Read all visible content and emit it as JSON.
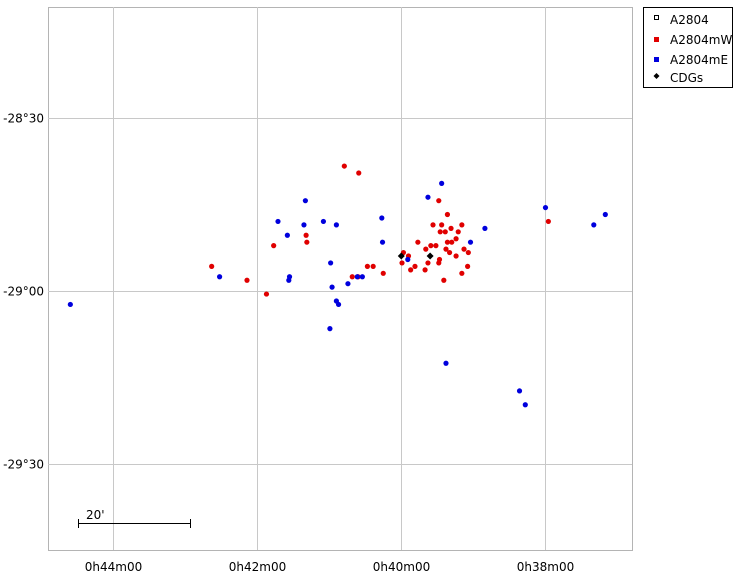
{
  "chart_data": {
    "type": "scatter",
    "x_axis": {
      "unit": "RA",
      "range_min": [
        44.9,
        36.8
      ],
      "ticks": [
        {
          "label": "0h44m00",
          "value_min": 44
        },
        {
          "label": "0h42m00",
          "value_min": 42
        },
        {
          "label": "0h40m00",
          "value_min": 40
        },
        {
          "label": "0h38m00",
          "value_min": 38
        }
      ]
    },
    "y_axis": {
      "unit": "Dec",
      "range_deg": [
        -29.75,
        -28.18
      ],
      "ticks": [
        {
          "label": "-28°30",
          "value_deg": -28.5
        },
        {
          "label": "-29°00",
          "value_deg": -29.0
        },
        {
          "label": "-29°30",
          "value_deg": -29.5
        }
      ]
    },
    "grid": true,
    "legend_position": "top-right",
    "legend": [
      {
        "label": "A2804",
        "color": "#000000",
        "marker": "open-square"
      },
      {
        "label": "A2804mW",
        "color": "#e00000",
        "marker": "square"
      },
      {
        "label": "A2804mE",
        "color": "#0000dd",
        "marker": "square"
      },
      {
        "label": "CDGs",
        "color": "#000000",
        "marker": "diamond"
      }
    ],
    "scale_bar": {
      "label": "20'",
      "length_arcmin": 20
    },
    "series": [
      {
        "name": "A2804mW",
        "color": "#e00000",
        "points": [
          [
            40.79,
            -28.64
          ],
          [
            40.59,
            -28.66
          ],
          [
            37.96,
            -28.8
          ],
          [
            39.48,
            -28.74
          ],
          [
            39.36,
            -28.78
          ],
          [
            39.56,
            -28.81
          ],
          [
            39.44,
            -28.81
          ],
          [
            39.31,
            -28.82
          ],
          [
            39.16,
            -28.81
          ],
          [
            39.21,
            -28.83
          ],
          [
            39.39,
            -28.83
          ],
          [
            39.46,
            -28.83
          ],
          [
            39.24,
            -28.85
          ],
          [
            39.3,
            -28.86
          ],
          [
            39.36,
            -28.86
          ],
          [
            39.52,
            -28.87
          ],
          [
            39.59,
            -28.87
          ],
          [
            39.66,
            -28.88
          ],
          [
            39.77,
            -28.86
          ],
          [
            39.38,
            -28.88
          ],
          [
            39.33,
            -28.89
          ],
          [
            39.97,
            -28.89
          ],
          [
            39.9,
            -28.9
          ],
          [
            39.13,
            -28.88
          ],
          [
            39.07,
            -28.89
          ],
          [
            39.24,
            -28.9
          ],
          [
            39.47,
            -28.91
          ],
          [
            39.63,
            -28.92
          ],
          [
            39.99,
            -28.92
          ],
          [
            39.81,
            -28.93
          ],
          [
            39.48,
            -28.92
          ],
          [
            39.08,
            -28.93
          ],
          [
            40.39,
            -28.93
          ],
          [
            40.47,
            -28.93
          ],
          [
            39.67,
            -28.94
          ],
          [
            40.25,
            -28.95
          ],
          [
            40.6,
            -28.96
          ],
          [
            39.87,
            -28.94
          ],
          [
            39.16,
            -28.95
          ],
          [
            40.68,
            -28.96
          ],
          [
            39.41,
            -28.97
          ],
          [
            42.63,
            -28.93
          ],
          [
            41.77,
            -28.87
          ],
          [
            41.31,
            -28.86
          ],
          [
            41.32,
            -28.84
          ],
          [
            42.14,
            -28.97
          ],
          [
            41.87,
            -29.01
          ]
        ]
      },
      {
        "name": "A2804mE",
        "color": "#0000dd",
        "points": [
          [
            39.44,
            -28.69
          ],
          [
            39.63,
            -28.73
          ],
          [
            41.33,
            -28.74
          ],
          [
            40.27,
            -28.79
          ],
          [
            41.71,
            -28.8
          ],
          [
            41.35,
            -28.81
          ],
          [
            41.08,
            -28.8
          ],
          [
            40.9,
            -28.81
          ],
          [
            38.84,
            -28.82
          ],
          [
            41.58,
            -28.84
          ],
          [
            40.26,
            -28.86
          ],
          [
            39.04,
            -28.86
          ],
          [
            38.0,
            -28.76
          ],
          [
            37.33,
            -28.81
          ],
          [
            37.17,
            -28.78
          ],
          [
            40.98,
            -28.92
          ],
          [
            39.91,
            -28.91
          ],
          [
            40.54,
            -28.96
          ],
          [
            40.61,
            -28.96
          ],
          [
            40.74,
            -28.98
          ],
          [
            41.55,
            -28.96
          ],
          [
            41.56,
            -28.97
          ],
          [
            40.96,
            -28.99
          ],
          [
            42.52,
            -28.96
          ],
          [
            40.9,
            -29.03
          ],
          [
            40.87,
            -29.04
          ],
          [
            40.99,
            -29.11
          ],
          [
            39.38,
            -29.21
          ],
          [
            38.36,
            -29.29
          ],
          [
            38.28,
            -29.33
          ],
          [
            44.59,
            -29.04
          ]
        ]
      },
      {
        "name": "CDGs",
        "color": "#000000",
        "points": [
          [
            40.0,
            -28.9
          ],
          [
            39.6,
            -28.9
          ]
        ]
      }
    ]
  }
}
